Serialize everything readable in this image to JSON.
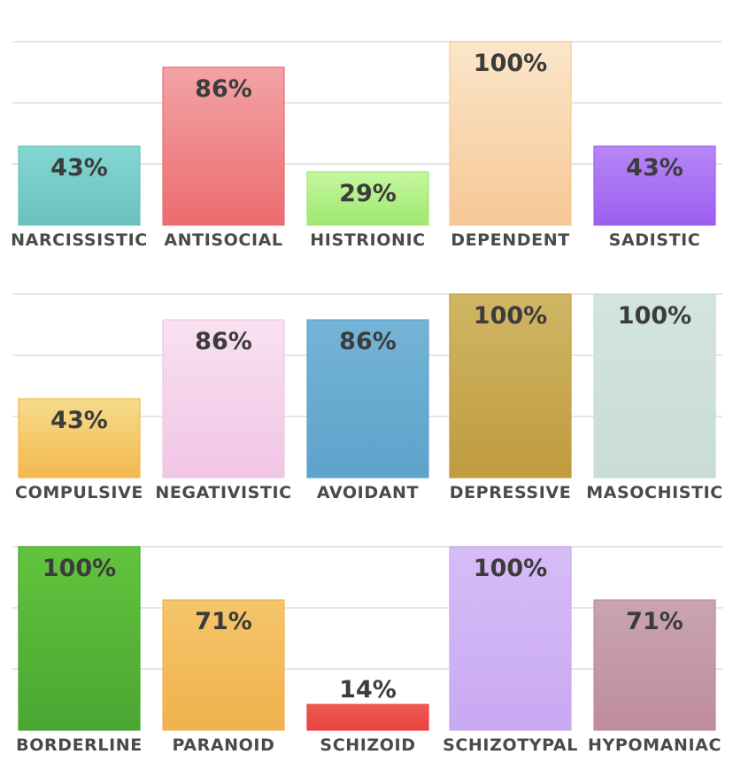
{
  "chart_data": [
    {
      "type": "bar",
      "title": "",
      "xlabel": "",
      "ylabel": "",
      "ylim": [
        0,
        100
      ],
      "value_suffix": "%",
      "categories": [
        "NARCISSISTIC",
        "ANTISOCIAL",
        "HISTRIONIC",
        "DEPENDENT",
        "SADISTIC"
      ],
      "values": [
        43,
        86,
        29,
        100,
        43
      ],
      "colors": [
        [
          "#84d6d1",
          "#6ac2bd"
        ],
        [
          "#f2a3a5",
          "#ec6c6f"
        ],
        [
          "#c6f7a0",
          "#9ee870"
        ],
        [
          "#fbe6c9",
          "#f6c795"
        ],
        [
          "#b687f5",
          "#9d5ef0"
        ]
      ]
    },
    {
      "type": "bar",
      "title": "",
      "xlabel": "",
      "ylabel": "",
      "ylim": [
        0,
        100
      ],
      "value_suffix": "%",
      "categories": [
        "COMPULSIVE",
        "NEGATIVISTIC",
        "AVOIDANT",
        "DEPRESSIVE",
        "MASOCHISTIC"
      ],
      "values": [
        43,
        86,
        86,
        100,
        100
      ],
      "colors": [
        [
          "#f7dc8c",
          "#f2b84e"
        ],
        [
          "#f8e1f1",
          "#f1c5e5"
        ],
        [
          "#74b4d6",
          "#5ea3cb"
        ],
        [
          "#d0b665",
          "#c09b3f"
        ],
        [
          "#d3e4dc",
          "#c9ddd4"
        ]
      ]
    },
    {
      "type": "bar",
      "title": "",
      "xlabel": "",
      "ylabel": "",
      "ylim": [
        0,
        100
      ],
      "value_suffix": "%",
      "categories": [
        "BORDERLINE",
        "PARANOID",
        "SCHIZOID",
        "SCHIZOTYPAL",
        "HYPOMANIAC"
      ],
      "values": [
        100,
        71,
        14,
        100,
        71
      ],
      "colors": [
        [
          "#62c43d",
          "#4aa632"
        ],
        [
          "#f5c56a",
          "#f0b24e"
        ],
        [
          "#ef5a54",
          "#e8433f"
        ],
        [
          "#d6bcf6",
          "#c9a9f2"
        ],
        [
          "#c9a4b0",
          "#bf8d9c"
        ]
      ]
    }
  ]
}
